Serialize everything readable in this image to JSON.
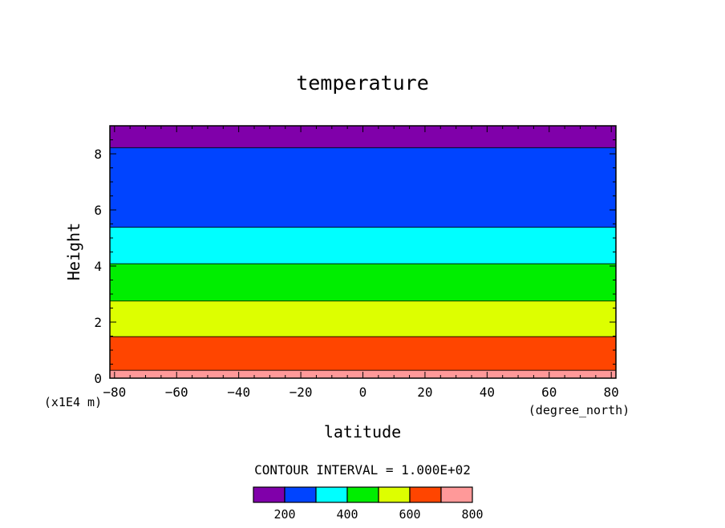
{
  "chart_data": {
    "type": "heatmap",
    "title": "temperature",
    "xlabel": "latitude",
    "ylabel": "Height",
    "x_units": "(degree_north)",
    "y_units": "(x1E4 m)",
    "xlim": [
      -81.5,
      81.5
    ],
    "ylim": [
      0,
      9
    ],
    "x_ticks": [
      -80,
      -60,
      -40,
      -20,
      0,
      20,
      40,
      60,
      80
    ],
    "y_ticks": [
      0,
      2,
      4,
      6,
      8
    ],
    "grid": false,
    "contour_interval_label": "CONTOUR INTERVAL = 1.000E+02",
    "bands": [
      {
        "y0": 0,
        "y1": 0.28,
        "color": "#ff9999",
        "range": [
          700,
          800
        ]
      },
      {
        "y0": 0.28,
        "y1": 1.48,
        "color": "#ff4500",
        "range": [
          600,
          700
        ]
      },
      {
        "y0": 1.48,
        "y1": 2.75,
        "color": "#ddff00",
        "range": [
          500,
          600
        ]
      },
      {
        "y0": 2.75,
        "y1": 4.08,
        "color": "#00ee00",
        "range": [
          400,
          500
        ]
      },
      {
        "y0": 4.08,
        "y1": 5.38,
        "color": "#00ffff",
        "range": [
          300,
          400
        ]
      },
      {
        "y0": 5.38,
        "y1": 8.22,
        "color": "#0044ff",
        "range": [
          200,
          300
        ]
      },
      {
        "y0": 8.22,
        "y1": 9.0,
        "color": "#8000aa",
        "range": [
          100,
          200
        ]
      }
    ],
    "colorbar": {
      "colors": [
        "#8000aa",
        "#0044ff",
        "#00ffff",
        "#00ee00",
        "#ddff00",
        "#ff4500",
        "#ff9999"
      ],
      "labels": [
        "200",
        "400",
        "600",
        "800"
      ]
    }
  }
}
